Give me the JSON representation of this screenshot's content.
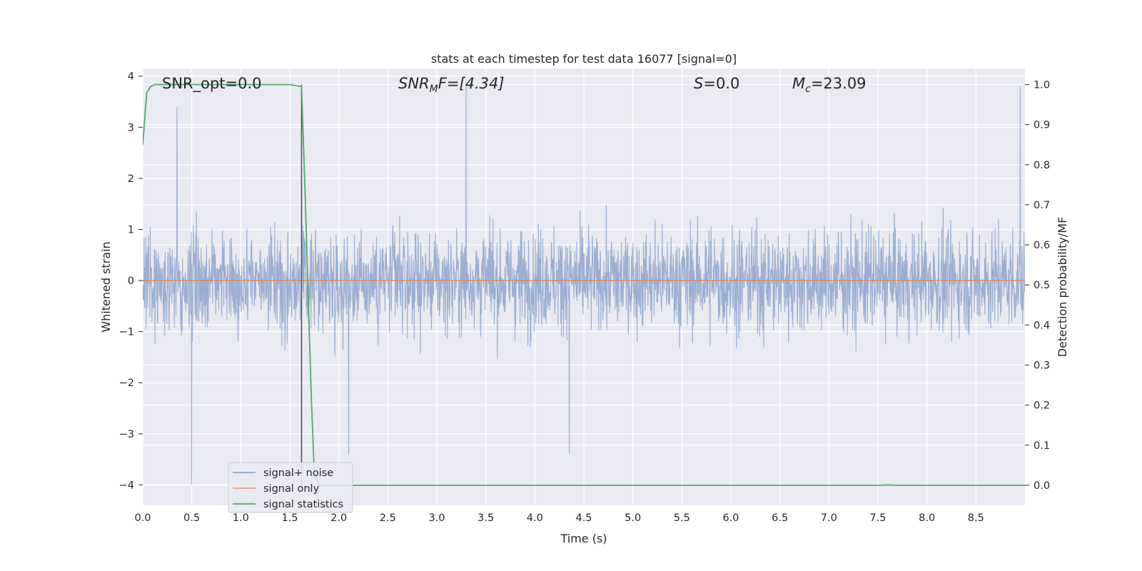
{
  "chart_data": {
    "type": "line",
    "title": "stats at each timestep for test data 16077 [signal=0]",
    "xlabel": "Time (s)",
    "ylabel": "Whitened strain",
    "y2label": "Detection probability/MF",
    "xlim": [
      0,
      9
    ],
    "ylim": [
      -4.4,
      4.15
    ],
    "y2lim": [
      -0.05,
      1.04
    ],
    "xticks": [
      "0.0",
      "0.5",
      "1.0",
      "1.5",
      "2.0",
      "2.5",
      "3.0",
      "3.5",
      "4.0",
      "4.5",
      "5.0",
      "5.5",
      "6.0",
      "6.5",
      "7.0",
      "7.5",
      "8.0",
      "8.5"
    ],
    "yticks": [
      "4",
      "3",
      "2",
      "1",
      "0",
      "−1",
      "−2",
      "−3",
      "−4"
    ],
    "y2ticks": [
      "1.0",
      "0.9",
      "0.8",
      "0.7",
      "0.6",
      "0.5",
      "0.4",
      "0.3",
      "0.2",
      "0.1",
      "0.0"
    ],
    "grid": true,
    "legend_position": "lower-left",
    "annotations": {
      "snr_opt": "SNR_opt=0.0",
      "snr_mf_main": "SNR",
      "snr_mf_sub": "M",
      "snr_mf_rest": "F=[4.34]",
      "s_main": "S",
      "s_rest": "=0.0",
      "mc_main": "M",
      "mc_sub": "c",
      "mc_rest": "=23.09"
    },
    "vline_x": 1.62,
    "series": [
      {
        "name": "signal+ noise",
        "color": "#4c72b0",
        "description": "whitened strain noise, approx. within ±2.3 with peaks up to 3.8 and down to -4.0",
        "peaks": [
          [
            0.5,
            -4.0
          ],
          [
            3.3,
            3.8
          ],
          [
            4.35,
            -3.4
          ],
          [
            8.95,
            3.8
          ],
          [
            0.35,
            3.4
          ],
          [
            2.1,
            -3.4
          ]
        ]
      },
      {
        "name": "signal only",
        "color": "#dd8452",
        "x": [
          0,
          9
        ],
        "y": [
          0,
          0
        ]
      },
      {
        "name": "signal statistics",
        "color": "#55a868",
        "axis": "right",
        "x": [
          0.0,
          0.04,
          0.08,
          0.12,
          0.2,
          1.0,
          1.5,
          1.62,
          1.66,
          1.69,
          1.72,
          1.75,
          1.8,
          2.0,
          4.0,
          7.5,
          7.6,
          7.7,
          8.0,
          9.0
        ],
        "y": [
          0.85,
          0.98,
          0.995,
          1.0,
          1.0,
          1.0,
          1.0,
          0.995,
          0.7,
          0.45,
          0.22,
          0.03,
          0.0,
          0.0,
          0.0,
          0.0,
          0.001,
          0.0,
          0.0,
          0.0
        ]
      }
    ]
  }
}
